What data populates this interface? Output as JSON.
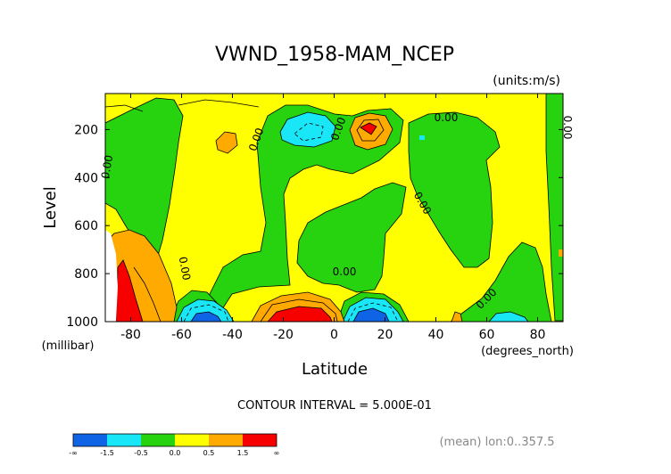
{
  "chart_data": {
    "type": "heatmap",
    "title": "VWND_1958-MAM_NCEP",
    "units_label": "(units:m/s)",
    "xlabel": "Latitude",
    "x_units_label": "(degrees_north)",
    "ylabel": "Level",
    "y_units_label": "(millibar)",
    "xlim": [
      -90,
      90
    ],
    "ylim": [
      1000,
      50
    ],
    "y_inverted": true,
    "x_ticks": [
      -80,
      -60,
      -40,
      -20,
      0,
      20,
      40,
      60,
      80
    ],
    "x_tick_labels": [
      "-80",
      "-60",
      "-40",
      "-20",
      "0",
      "20",
      "40",
      "60",
      "80"
    ],
    "y_ticks": [
      200,
      400,
      600,
      800,
      1000
    ],
    "y_tick_labels": [
      "200",
      "400",
      "600",
      "800",
      "1000"
    ],
    "contour_interval_text": "CONTOUR INTERVAL = 5.000E-01",
    "contour_labels": [
      "0.00",
      "0.00",
      "0.00",
      "0.00",
      "0.00",
      "0.00",
      "0.00",
      "0.00",
      "0.00"
    ],
    "footer_text": "(mean) lon:0..357.5",
    "colorbar": {
      "bins": [
        {
          "from": "-inf",
          "to": -1.5,
          "color": "#0f64e6"
        },
        {
          "from": -1.5,
          "to": -0.5,
          "color": "#19e6f7"
        },
        {
          "from": -0.5,
          "to": 0.0,
          "color": "#27d30f"
        },
        {
          "from": 0.0,
          "to": 0.5,
          "color": "#ffff00"
        },
        {
          "from": 0.5,
          "to": 1.5,
          "color": "#ffaa00"
        },
        {
          "from": 1.5,
          "to": "inf",
          "color": "#f70000"
        }
      ],
      "tick_labels": [
        "-∞",
        "-1.5",
        "-0.5",
        "0.0",
        "0.5",
        "1.5",
        "∞"
      ]
    },
    "features": [
      {
        "sign": "positive",
        "level": "red",
        "lat": 12,
        "pressure": 170,
        "value": 1.6
      },
      {
        "sign": "positive",
        "level": "orange",
        "lat": 12,
        "pressure": 160,
        "value": 1.0
      },
      {
        "sign": "negative",
        "level": "cyan",
        "lat": -17,
        "pressure": 180,
        "value": -1.0
      },
      {
        "sign": "positive",
        "level": "orange",
        "lat": -45,
        "pressure": 220,
        "value": 0.8
      },
      {
        "sign": "positive",
        "level": "red",
        "lat": -12,
        "pressure": 975,
        "value": 2.0
      },
      {
        "sign": "negative",
        "level": "blue",
        "lat": 15,
        "pressure": 985,
        "value": -2.0
      },
      {
        "sign": "negative",
        "level": "blue",
        "lat": -48,
        "pressure": 985,
        "value": -1.8
      },
      {
        "sign": "positive",
        "level": "red",
        "lat": -87,
        "pressure": 900,
        "value": 2.0
      },
      {
        "sign": "positive",
        "level": "orange",
        "lat": -75,
        "pressure": 850,
        "value": 1.0
      },
      {
        "sign": "negative",
        "level": "cyan",
        "lat": 70,
        "pressure": 990,
        "value": -0.8
      }
    ]
  }
}
